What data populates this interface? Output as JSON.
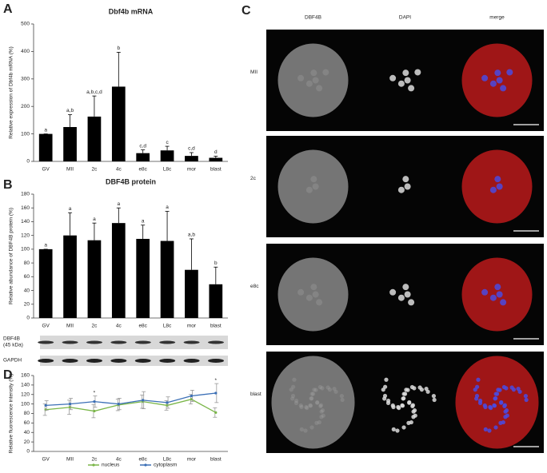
{
  "panel_labels": [
    "A",
    "B",
    "C",
    "D"
  ],
  "chart_data": [
    {
      "type": "bar",
      "title": "Dbf4b mRNA",
      "y_label": "Relative expression of Dbf4b mRNA (%)",
      "categories": [
        "GV",
        "MII",
        "2c",
        "4c",
        "e8c",
        "L8c",
        "mor",
        "blast"
      ],
      "values": [
        100,
        125,
        163,
        272,
        30,
        40,
        20,
        13
      ],
      "errors": [
        0,
        45,
        75,
        125,
        12,
        15,
        12,
        6
      ],
      "annotations": [
        "a",
        "a,b",
        "a,b,c,d",
        "b",
        "c,d",
        "c",
        "c,d",
        "d"
      ],
      "color": "#000000",
      "ylim": [
        0,
        500
      ],
      "yticks": [
        0,
        100,
        200,
        300,
        400,
        500
      ]
    },
    {
      "type": "bar",
      "title": "DBF4B protein",
      "y_label": "Relative abundance of DBF4B protein (%)",
      "categories": [
        "GV",
        "MII",
        "2c",
        "4c",
        "e8c",
        "L8c",
        "mor",
        "blast"
      ],
      "values": [
        100,
        120,
        113,
        138,
        115,
        112,
        70,
        49
      ],
      "errors": [
        0,
        33,
        25,
        22,
        20,
        43,
        45,
        25
      ],
      "annotations": [
        "a",
        "a",
        "a",
        "a",
        "a",
        "a",
        "a,b",
        "b"
      ],
      "color": "#000000",
      "ylim": [
        0,
        180
      ],
      "yticks": [
        0,
        20,
        40,
        60,
        80,
        100,
        120,
        140,
        160,
        180
      ]
    },
    {
      "type": "line",
      "y_label": "Relative fluorescence intensity (%)",
      "categories": [
        "GV",
        "MII",
        "2c",
        "4c",
        "e8c",
        "L8c",
        "mor",
        "blast"
      ],
      "series": [
        {
          "name": "nucleus",
          "color": "#7ab648",
          "values": [
            88,
            93,
            85,
            98,
            105,
            97,
            110,
            82
          ],
          "errors": [
            12,
            15,
            14,
            12,
            14,
            10,
            10,
            10
          ]
        },
        {
          "name": "cytoplasm",
          "color": "#3b6fb6",
          "values": [
            97,
            100,
            105,
            100,
            108,
            103,
            117,
            123
          ],
          "errors": [
            10,
            12,
            12,
            12,
            18,
            12,
            12,
            20
          ]
        }
      ],
      "annotations": [
        null,
        null,
        "*",
        null,
        null,
        null,
        null,
        "*"
      ],
      "ylim": [
        0,
        160
      ],
      "yticks": [
        0,
        20,
        40,
        60,
        80,
        100,
        120,
        140,
        160
      ]
    }
  ],
  "blot": {
    "rows": [
      [
        "DBF4B",
        "(45 kDa)"
      ],
      [
        "GAPDH"
      ]
    ]
  },
  "microscopy": {
    "columns": [
      "DBF4B",
      "DAPI",
      "merge"
    ],
    "rows": [
      "MII",
      "2c",
      "e8c",
      "blast"
    ]
  }
}
